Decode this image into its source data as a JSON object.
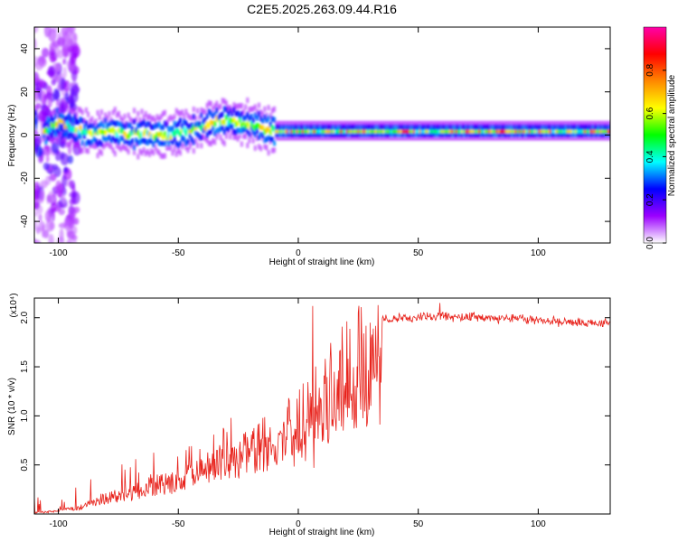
{
  "figure_title": "C2E5.2025.263.09.44.R16",
  "chart_data": [
    {
      "type": "heatmap",
      "title": "C2E5.2025.263.09.44.R16",
      "xlabel": "Height of straight line (km)",
      "ylabel": "Frequency (Hz)",
      "xlim": [
        -110,
        130
      ],
      "ylim": [
        -50,
        50
      ],
      "x_ticks": [
        -100,
        -50,
        0,
        50,
        100
      ],
      "y_ticks": [
        -40,
        -20,
        0,
        20,
        40
      ],
      "colorbar": {
        "label": "Normalized spectral amplitude",
        "range": [
          0,
          1
        ],
        "ticks": [
          0.0,
          0.2,
          0.4,
          0.6,
          0.8
        ],
        "tick_labels": [
          "0.0",
          "0.2",
          "0.4",
          "0.6",
          "0.8"
        ],
        "colors": [
          "#ffffff",
          "#9b00ff",
          "#0000ff",
          "#00ffff",
          "#00ff00",
          "#ffff00",
          "#ff8800",
          "#ff0000",
          "#ff00aa"
        ]
      },
      "ridge": {
        "x": [
          -105,
          -100,
          -95,
          -90,
          -85,
          -80,
          -75,
          -70,
          -65,
          -60,
          -55,
          -50,
          -45,
          -40,
          -35,
          -30,
          -25,
          -20,
          -15,
          -10,
          -5,
          0,
          10,
          20,
          40,
          60,
          80,
          100,
          130
        ],
        "frequency": [
          2,
          6,
          4,
          2,
          0,
          2,
          1,
          0,
          1,
          0,
          0,
          1,
          2,
          4,
          6,
          7,
          6,
          5,
          3,
          2,
          2,
          2,
          2,
          2,
          2,
          2,
          2,
          2,
          2
        ]
      }
    },
    {
      "type": "line",
      "xlabel": "Height of straight line (km)",
      "ylabel": "SNR (10 * v/v)",
      "y_multiplier": "(x10⁴)",
      "xlim": [
        -110,
        130
      ],
      "ylim": [
        0,
        2.2
      ],
      "x_ticks": [
        -100,
        -50,
        0,
        50,
        100
      ],
      "y_ticks": [
        0.5,
        1.0,
        1.5,
        2.0
      ],
      "y_tick_labels": [
        "0.5",
        "1.0",
        "1.5",
        "2.0"
      ],
      "color": "#e8231c",
      "envelope": {
        "x": [
          -110,
          -100,
          -90,
          -80,
          -70,
          -60,
          -50,
          -40,
          -30,
          -20,
          -15,
          -10,
          -5,
          0,
          5,
          10,
          15,
          20,
          25,
          30,
          40,
          50,
          60,
          70,
          80,
          90,
          100,
          110,
          120,
          130
        ],
        "y": [
          0.02,
          0.04,
          0.1,
          0.22,
          0.3,
          0.4,
          0.45,
          0.6,
          0.75,
          0.85,
          0.95,
          1.0,
          0.95,
          1.0,
          1.2,
          1.4,
          1.65,
          1.8,
          1.9,
          1.97,
          2.02,
          2.03,
          2.04,
          2.03,
          2.02,
          2.02,
          2.0,
          1.98,
          1.97,
          1.96
        ]
      },
      "notable_points": [
        {
          "x": 6,
          "y": 2.12
        },
        {
          "x": 6.5,
          "y": 0.47
        },
        {
          "x": 59,
          "y": 2.15
        }
      ]
    }
  ]
}
